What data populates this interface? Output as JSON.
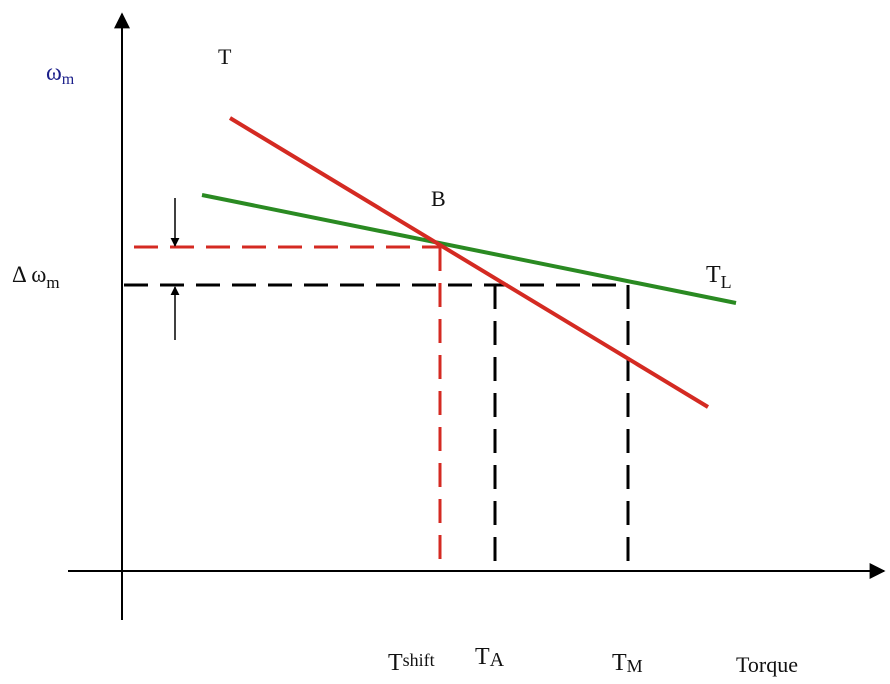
{
  "labels": {
    "y_axis_main": "ω",
    "y_axis_sub": "m",
    "motor_curve": "T",
    "point": "B",
    "load_curve_main": "T",
    "load_curve_sub": "L",
    "delta_main": "Δ ω",
    "delta_sub": "m",
    "t_shift_main": "T",
    "t_shift_sub": "shift",
    "t_a_main": "T",
    "t_a_sub": "A",
    "t_m_main": "T",
    "t_m_sub": "M",
    "x_axis": "Torque"
  },
  "colors": {
    "motor_curve": "#d42a22",
    "load_curve": "#2a8a22",
    "axis": "#000000",
    "dashed_red": "#d42a22",
    "dashed_black": "#000000",
    "omega_label": "#1b1f8a"
  }
}
